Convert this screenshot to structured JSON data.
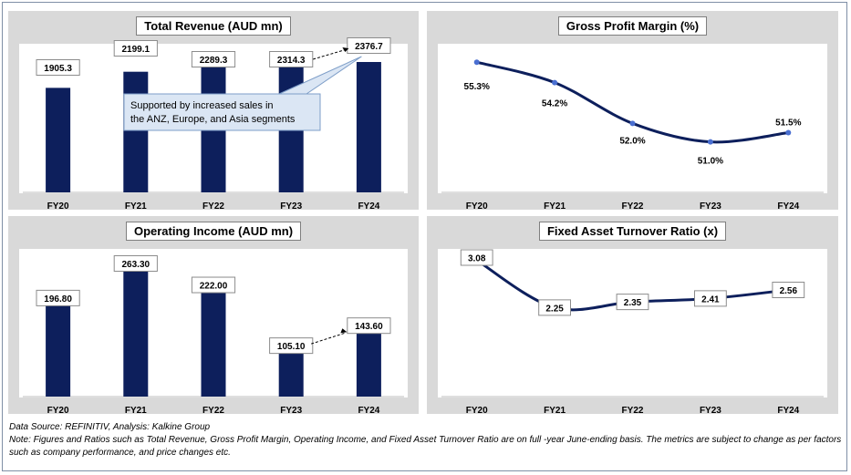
{
  "chart_data": [
    {
      "type": "bar",
      "title": "Total Revenue (AUD mn)",
      "categories": [
        "FY20",
        "FY21",
        "FY22",
        "FY23",
        "FY24"
      ],
      "values": [
        1905.3,
        2199.1,
        2289.3,
        2314.3,
        2376.7
      ],
      "value_labels": [
        "1905.3",
        "2199.1",
        "2289.3",
        "2314.3",
        "2376.7"
      ],
      "annotation": "Supported by increased sales in the ANZ, Europe, and Asia segments",
      "color": "#0d1f5c"
    },
    {
      "type": "line",
      "title": "Gross Profit Margin (%)",
      "categories": [
        "FY20",
        "FY21",
        "FY22",
        "FY23",
        "FY24"
      ],
      "values": [
        55.3,
        54.2,
        52.0,
        51.0,
        51.5
      ],
      "value_labels": [
        "55.3%",
        "54.2%",
        "52.0%",
        "51.0%",
        "51.5%"
      ],
      "color": "#0d1f5c"
    },
    {
      "type": "bar",
      "title": "Operating Income (AUD mn)",
      "categories": [
        "FY20",
        "FY21",
        "FY22",
        "FY23",
        "FY24"
      ],
      "values": [
        196.8,
        263.3,
        222.0,
        105.1,
        143.6
      ],
      "value_labels": [
        "196.80",
        "263.30",
        "222.00",
        "105.10",
        "143.60"
      ],
      "color": "#0d1f5c"
    },
    {
      "type": "line",
      "title": "Fixed Asset Turnover Ratio (x)",
      "categories": [
        "FY20",
        "FY21",
        "FY22",
        "FY23",
        "FY24"
      ],
      "values": [
        3.08,
        2.25,
        2.35,
        2.41,
        2.56
      ],
      "value_labels": [
        "3.08",
        "2.25",
        "2.35",
        "2.41",
        "2.56"
      ],
      "color": "#0d1f5c"
    }
  ],
  "footer": {
    "source": "Data Source: REFINITIV, Analysis: Kalkine Group",
    "note_line1": "Note: Figures and Ratios such as Total Revenue, Gross Profit Margin, Operating Income, and Fixed Asset Turnover Ratio are on full -year June-ending basis. The metrics are subject to change as per factors",
    "note_line2": "such as company performance, and price changes etc."
  }
}
